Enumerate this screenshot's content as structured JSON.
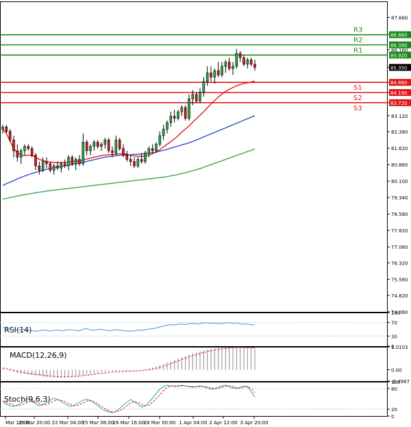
{
  "chart_data": [
    {
      "type": "candlestick",
      "title": "",
      "ylim": [
        74.06,
        88.4
      ],
      "y_ticks": [
        "87.660",
        "86.880",
        "86.160",
        "85.350",
        "84.660",
        "84.190",
        "83.720",
        "83.120",
        "82.380",
        "81.620",
        "80.860",
        "80.100",
        "79.340",
        "78.580",
        "77.820",
        "77.060",
        "76.320",
        "75.560",
        "74.820",
        "74.060"
      ],
      "x_ticks": [
        "Mar 12:00",
        "20 Mar 20:00",
        "22 Mar 04:00",
        "25 Mar 08:00",
        "26 Mar 16:00",
        "28 Mar 00:00",
        "1 Apr 04:00",
        "2 Apr 12:00",
        "3 Apr 20:00"
      ],
      "current_price": 85.35,
      "levels": [
        {
          "name": "R3",
          "value": 86.86,
          "label": "86.860",
          "color": "#1a8a1a"
        },
        {
          "name": "R2",
          "value": 86.39,
          "label": "86.390",
          "color": "#1a8a1a"
        },
        {
          "name": "R1",
          "value": 85.92,
          "label": "85.920",
          "color": "#1a8a1a"
        },
        {
          "name": "S1",
          "value": 84.66,
          "label": "84.660",
          "color": "#e01818"
        },
        {
          "name": "S2",
          "value": 84.19,
          "label": "84.190",
          "color": "#e01818"
        },
        {
          "name": "S3",
          "value": 83.72,
          "label": "83.720",
          "color": "#e01818"
        }
      ],
      "candles": [
        {
          "o": 82.5,
          "h": 82.7,
          "l": 82.3,
          "c": 82.6
        },
        {
          "o": 82.6,
          "h": 82.7,
          "l": 82.3,
          "c": 82.4
        },
        {
          "o": 82.4,
          "h": 82.5,
          "l": 81.9,
          "c": 82.0
        },
        {
          "o": 82.0,
          "h": 82.2,
          "l": 81.2,
          "c": 81.5
        },
        {
          "o": 81.5,
          "h": 81.8,
          "l": 81.0,
          "c": 81.2
        },
        {
          "o": 81.2,
          "h": 81.6,
          "l": 80.9,
          "c": 81.5
        },
        {
          "o": 81.5,
          "h": 81.8,
          "l": 81.3,
          "c": 81.7
        },
        {
          "o": 81.7,
          "h": 81.8,
          "l": 81.5,
          "c": 81.6
        },
        {
          "o": 81.6,
          "h": 81.7,
          "l": 81.2,
          "c": 81.3
        },
        {
          "o": 81.3,
          "h": 81.4,
          "l": 80.6,
          "c": 80.8
        },
        {
          "o": 80.8,
          "h": 81.0,
          "l": 80.4,
          "c": 80.6
        },
        {
          "o": 80.6,
          "h": 81.2,
          "l": 80.5,
          "c": 81.0
        },
        {
          "o": 81.0,
          "h": 81.2,
          "l": 80.7,
          "c": 80.9
        },
        {
          "o": 80.9,
          "h": 81.0,
          "l": 80.5,
          "c": 80.6
        },
        {
          "o": 80.6,
          "h": 80.9,
          "l": 80.4,
          "c": 80.8
        },
        {
          "o": 80.8,
          "h": 81.0,
          "l": 80.6,
          "c": 80.7
        },
        {
          "o": 80.7,
          "h": 81.0,
          "l": 80.5,
          "c": 80.9
        },
        {
          "o": 80.9,
          "h": 81.1,
          "l": 80.7,
          "c": 80.8
        },
        {
          "o": 80.8,
          "h": 81.3,
          "l": 80.6,
          "c": 81.2
        },
        {
          "o": 81.2,
          "h": 81.3,
          "l": 80.8,
          "c": 80.9
        },
        {
          "o": 80.9,
          "h": 81.2,
          "l": 80.6,
          "c": 81.1
        },
        {
          "o": 81.1,
          "h": 81.3,
          "l": 80.8,
          "c": 80.9
        },
        {
          "o": 80.9,
          "h": 82.3,
          "l": 80.8,
          "c": 81.9
        },
        {
          "o": 81.9,
          "h": 82.0,
          "l": 81.3,
          "c": 81.5
        },
        {
          "o": 81.5,
          "h": 81.8,
          "l": 81.3,
          "c": 81.7
        },
        {
          "o": 81.7,
          "h": 82.0,
          "l": 81.5,
          "c": 81.9
        },
        {
          "o": 81.9,
          "h": 82.0,
          "l": 81.6,
          "c": 81.7
        },
        {
          "o": 81.7,
          "h": 81.9,
          "l": 81.5,
          "c": 81.8
        },
        {
          "o": 81.8,
          "h": 82.1,
          "l": 81.6,
          "c": 82.0
        },
        {
          "o": 82.0,
          "h": 82.1,
          "l": 81.4,
          "c": 81.5
        },
        {
          "o": 81.5,
          "h": 81.7,
          "l": 81.2,
          "c": 81.4
        },
        {
          "o": 81.4,
          "h": 82.2,
          "l": 81.3,
          "c": 82.0
        },
        {
          "o": 82.0,
          "h": 82.1,
          "l": 81.5,
          "c": 81.6
        },
        {
          "o": 81.6,
          "h": 81.8,
          "l": 81.2,
          "c": 81.3
        },
        {
          "o": 81.3,
          "h": 81.5,
          "l": 81.0,
          "c": 81.1
        },
        {
          "o": 81.1,
          "h": 81.3,
          "l": 80.8,
          "c": 81.0
        },
        {
          "o": 81.0,
          "h": 81.2,
          "l": 80.7,
          "c": 80.8
        },
        {
          "o": 80.8,
          "h": 81.2,
          "l": 80.7,
          "c": 81.1
        },
        {
          "o": 81.1,
          "h": 81.4,
          "l": 80.9,
          "c": 81.0
        },
        {
          "o": 81.0,
          "h": 81.5,
          "l": 80.9,
          "c": 81.4
        },
        {
          "o": 81.4,
          "h": 81.7,
          "l": 81.2,
          "c": 81.6
        },
        {
          "o": 81.6,
          "h": 81.8,
          "l": 81.4,
          "c": 81.5
        },
        {
          "o": 81.5,
          "h": 81.9,
          "l": 81.4,
          "c": 81.8
        },
        {
          "o": 81.8,
          "h": 82.4,
          "l": 81.7,
          "c": 82.2
        },
        {
          "o": 82.2,
          "h": 82.7,
          "l": 82.0,
          "c": 82.5
        },
        {
          "o": 82.5,
          "h": 82.9,
          "l": 82.3,
          "c": 82.8
        },
        {
          "o": 82.8,
          "h": 83.3,
          "l": 82.6,
          "c": 83.1
        },
        {
          "o": 83.1,
          "h": 83.4,
          "l": 82.8,
          "c": 83.0
        },
        {
          "o": 83.0,
          "h": 83.4,
          "l": 82.9,
          "c": 83.3
        },
        {
          "o": 83.3,
          "h": 83.6,
          "l": 83.1,
          "c": 83.5
        },
        {
          "o": 83.5,
          "h": 83.6,
          "l": 82.9,
          "c": 83.0
        },
        {
          "o": 83.0,
          "h": 84.1,
          "l": 82.9,
          "c": 83.9
        },
        {
          "o": 83.9,
          "h": 84.3,
          "l": 83.6,
          "c": 84.1
        },
        {
          "o": 84.1,
          "h": 84.2,
          "l": 83.7,
          "c": 83.8
        },
        {
          "o": 83.8,
          "h": 84.4,
          "l": 83.7,
          "c": 84.2
        },
        {
          "o": 84.2,
          "h": 84.9,
          "l": 84.0,
          "c": 84.7
        },
        {
          "o": 84.7,
          "h": 85.4,
          "l": 84.5,
          "c": 85.1
        },
        {
          "o": 85.1,
          "h": 85.4,
          "l": 84.7,
          "c": 84.9
        },
        {
          "o": 84.9,
          "h": 85.3,
          "l": 84.6,
          "c": 85.2
        },
        {
          "o": 85.2,
          "h": 85.6,
          "l": 84.9,
          "c": 85.0
        },
        {
          "o": 85.0,
          "h": 85.6,
          "l": 84.9,
          "c": 85.4
        },
        {
          "o": 85.4,
          "h": 85.7,
          "l": 85.1,
          "c": 85.6
        },
        {
          "o": 85.6,
          "h": 85.8,
          "l": 85.2,
          "c": 85.3
        },
        {
          "o": 85.3,
          "h": 85.6,
          "l": 85.0,
          "c": 85.4
        },
        {
          "o": 85.4,
          "h": 86.2,
          "l": 85.3,
          "c": 86.0
        },
        {
          "o": 86.0,
          "h": 86.1,
          "l": 85.6,
          "c": 85.8
        },
        {
          "o": 85.8,
          "h": 85.9,
          "l": 85.4,
          "c": 85.5
        },
        {
          "o": 85.5,
          "h": 85.8,
          "l": 85.3,
          "c": 85.7
        },
        {
          "o": 85.7,
          "h": 85.8,
          "l": 85.4,
          "c": 85.5
        },
        {
          "o": 85.5,
          "h": 85.7,
          "l": 85.2,
          "c": 85.35
        }
      ],
      "series": [
        {
          "name": "",
          "color": "#e01818",
          "values": [
            82.5,
            82.3,
            81.95,
            81.6,
            81.4,
            81.3,
            81.28,
            81.3,
            81.28,
            81.2,
            81.1,
            81.05,
            81.0,
            80.98,
            80.96,
            80.95,
            80.95,
            80.96,
            80.98,
            81.0,
            81.02,
            81.04,
            81.08,
            81.12,
            81.16,
            81.2,
            81.24,
            81.28,
            81.3,
            81.32,
            81.32,
            81.34,
            81.36,
            81.36,
            81.34,
            81.3,
            81.26,
            81.24,
            81.24,
            81.26,
            81.3,
            81.36,
            81.44,
            81.55,
            81.68,
            81.8,
            81.92,
            82.05,
            82.2,
            82.36,
            82.5,
            82.65,
            82.82,
            82.98,
            83.14,
            83.3,
            83.48,
            83.66,
            83.82,
            83.98,
            84.12,
            84.24,
            84.34,
            84.42,
            84.5,
            84.56,
            84.6,
            84.64,
            84.68,
            84.72
          ]
        },
        {
          "name": "",
          "color": "#3050c0",
          "values": [
            79.9,
            79.98,
            80.05,
            80.12,
            80.2,
            80.27,
            80.33,
            80.39,
            80.45,
            80.5,
            80.55,
            80.6,
            80.64,
            80.68,
            80.72,
            80.75,
            80.78,
            80.81,
            80.84,
            80.87,
            80.9,
            80.93,
            80.97,
            81.01,
            81.05,
            81.09,
            81.13,
            81.17,
            81.2,
            81.23,
            81.25,
            81.27,
            81.29,
            81.3,
            81.31,
            81.32,
            81.33,
            81.34,
            81.35,
            81.37,
            81.39,
            81.41,
            81.44,
            81.48,
            81.52,
            81.57,
            81.62,
            81.67,
            81.72,
            81.77,
            81.82,
            81.87,
            81.93,
            82.0,
            82.07,
            82.14,
            82.21,
            82.28,
            82.35,
            82.42,
            82.49,
            82.56,
            82.63,
            82.7,
            82.77,
            82.84,
            82.91,
            82.98,
            83.05,
            83.12
          ]
        },
        {
          "name": "",
          "color": "#3aa84a",
          "values": [
            79.26,
            79.3,
            79.34,
            79.37,
            79.41,
            79.44,
            79.47,
            79.5,
            79.53,
            79.56,
            79.59,
            79.61,
            79.64,
            79.66,
            79.68,
            79.7,
            79.72,
            79.74,
            79.76,
            79.78,
            79.8,
            79.82,
            79.84,
            79.86,
            79.88,
            79.9,
            79.92,
            79.94,
            79.96,
            79.98,
            80.0,
            80.02,
            80.04,
            80.06,
            80.08,
            80.1,
            80.12,
            80.14,
            80.16,
            80.18,
            80.2,
            80.22,
            80.24,
            80.26,
            80.28,
            80.31,
            80.34,
            80.37,
            80.41,
            80.45,
            80.49,
            80.53,
            80.58,
            80.63,
            80.68,
            80.74,
            80.8,
            80.86,
            80.92,
            80.98,
            81.04,
            81.1,
            81.16,
            81.22,
            81.28,
            81.34,
            81.4,
            81.46,
            81.52,
            81.58
          ]
        }
      ]
    },
    {
      "type": "line",
      "label": "RSI(14)",
      "ylim": [
        0,
        100
      ],
      "y_ticks": [
        "100",
        "70",
        "30",
        "0"
      ],
      "series": [
        {
          "name": "",
          "color": "#4a90d9",
          "values": [
            55,
            52,
            48,
            50,
            47,
            49,
            50,
            48,
            46,
            44,
            46,
            48,
            47,
            45,
            47,
            48,
            46,
            47,
            49,
            48,
            47,
            46,
            50,
            52,
            48,
            47,
            49,
            50,
            48,
            46,
            47,
            49,
            48,
            46,
            45,
            44,
            46,
            48,
            47,
            49,
            51,
            52,
            54,
            57,
            60,
            62,
            64,
            63,
            65,
            66,
            64,
            67,
            68,
            66,
            67,
            69,
            70,
            68,
            69,
            67,
            68,
            69,
            70,
            68,
            69,
            66,
            65,
            66,
            64,
            63
          ]
        }
      ]
    },
    {
      "type": "bar+line",
      "label": "MACD(12,26,9)",
      "ylim": [
        -0.4967,
        1.0103
      ],
      "y_ticks": [
        "1.0103",
        "0.00",
        "-0.4967"
      ],
      "bars": [
        0.05,
        0.0,
        -0.05,
        -0.1,
        -0.15,
        -0.18,
        -0.2,
        -0.22,
        -0.24,
        -0.26,
        -0.28,
        -0.3,
        -0.32,
        -0.33,
        -0.34,
        -0.35,
        -0.35,
        -0.34,
        -0.33,
        -0.32,
        -0.3,
        -0.28,
        -0.25,
        -0.22,
        -0.2,
        -0.18,
        -0.15,
        -0.12,
        -0.1,
        -0.08,
        -0.06,
        -0.05,
        -0.04,
        -0.04,
        -0.05,
        -0.05,
        -0.04,
        -0.02,
        0.0,
        0.03,
        0.06,
        0.1,
        0.15,
        0.2,
        0.26,
        0.32,
        0.38,
        0.44,
        0.5,
        0.56,
        0.62,
        0.68,
        0.73,
        0.78,
        0.82,
        0.86,
        0.9,
        0.93,
        0.95,
        0.97,
        0.98,
        0.99,
        1.0,
        1.0,
        1.0,
        0.99,
        0.98,
        0.97,
        0.96,
        0.95
      ],
      "series": [
        {
          "name": "",
          "color": "#e01818",
          "values": [
            0.08,
            0.05,
            0.02,
            -0.02,
            -0.06,
            -0.1,
            -0.13,
            -0.16,
            -0.18,
            -0.2,
            -0.22,
            -0.24,
            -0.26,
            -0.28,
            -0.29,
            -0.3,
            -0.31,
            -0.31,
            -0.31,
            -0.3,
            -0.29,
            -0.28,
            -0.26,
            -0.24,
            -0.22,
            -0.2,
            -0.18,
            -0.16,
            -0.14,
            -0.12,
            -0.1,
            -0.09,
            -0.08,
            -0.07,
            -0.07,
            -0.06,
            -0.06,
            -0.05,
            -0.04,
            -0.02,
            0.0,
            0.03,
            0.07,
            0.11,
            0.16,
            0.21,
            0.27,
            0.33,
            0.39,
            0.45,
            0.51,
            0.57,
            0.62,
            0.67,
            0.72,
            0.76,
            0.8,
            0.84,
            0.87,
            0.9,
            0.92,
            0.94,
            0.96,
            0.97,
            0.98,
            0.98,
            0.98,
            0.97,
            0.97,
            0.96
          ]
        }
      ]
    },
    {
      "type": "line",
      "label": "Stoch(9,6,3)",
      "ylim": [
        0,
        100
      ],
      "y_ticks": [
        "100",
        "80",
        "20",
        "0"
      ],
      "series": [
        {
          "name": "",
          "color": "#2aa6a6",
          "values": [
            40,
            35,
            30,
            28,
            32,
            38,
            45,
            50,
            42,
            35,
            30,
            34,
            40,
            46,
            52,
            48,
            42,
            36,
            30,
            28,
            34,
            40,
            46,
            50,
            44,
            38,
            30,
            22,
            16,
            12,
            10,
            14,
            22,
            32,
            40,
            48,
            42,
            34,
            26,
            30,
            40,
            52,
            66,
            78,
            86,
            90,
            88,
            86,
            88,
            90,
            88,
            86,
            84,
            86,
            88,
            86,
            82,
            78,
            80,
            84,
            88,
            90,
            86,
            82,
            80,
            84,
            88,
            86,
            70,
            55
          ]
        },
        {
          "name": "",
          "color": "#e01818",
          "values": [
            44,
            40,
            36,
            32,
            30,
            32,
            36,
            42,
            44,
            40,
            36,
            32,
            34,
            38,
            44,
            48,
            46,
            42,
            36,
            32,
            30,
            33,
            38,
            44,
            46,
            42,
            36,
            28,
            22,
            16,
            12,
            12,
            16,
            22,
            30,
            38,
            42,
            40,
            34,
            30,
            32,
            40,
            50,
            62,
            74,
            84,
            88,
            88,
            87,
            88,
            88,
            87,
            86,
            85,
            86,
            86,
            85,
            82,
            80,
            81,
            84,
            87,
            88,
            86,
            83,
            82,
            84,
            86,
            80,
            68
          ]
        }
      ]
    }
  ]
}
